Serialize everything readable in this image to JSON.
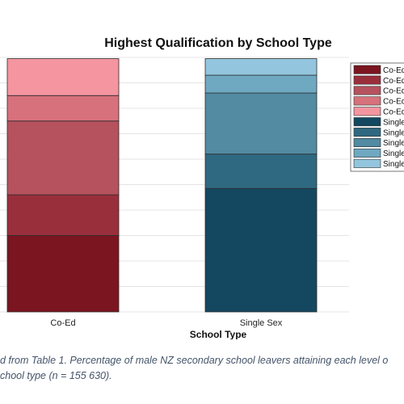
{
  "chart_data": {
    "type": "bar",
    "stacked": true,
    "title": "Highest Qualification by School Type",
    "xlabel": "School Type",
    "ylabel": "",
    "ylim": [
      0,
      100
    ],
    "grid": true,
    "legend_position": "top-right",
    "categories": [
      "Co-Ed",
      "Single Sex"
    ],
    "bars": [
      {
        "category": "Co-Ed",
        "segments": [
          {
            "value": 30,
            "color": "#7b1520"
          },
          {
            "value": 16,
            "color": "#9a2f3c"
          },
          {
            "value": 29,
            "color": "#b5525d"
          },
          {
            "value": 10,
            "color": "#d7717b"
          },
          {
            "value": 14.5,
            "color": "#f5959f"
          }
        ]
      },
      {
        "category": "Single Sex",
        "segments": [
          {
            "value": 48.5,
            "color": "#144860"
          },
          {
            "value": 13.5,
            "color": "#2f6981"
          },
          {
            "value": 24,
            "color": "#528ba2"
          },
          {
            "value": 7,
            "color": "#6fa8c1"
          },
          {
            "value": 6.5,
            "color": "#93c6de"
          }
        ]
      }
    ],
    "legend": [
      {
        "label": "Co-Ed",
        "color": "#7b1520"
      },
      {
        "label": "Co-Ed",
        "color": "#9a2f3c"
      },
      {
        "label": "Co-Ed",
        "color": "#b5525d"
      },
      {
        "label": "Co-Ed",
        "color": "#d7717b"
      },
      {
        "label": "Co-Ed",
        "color": "#f5959f"
      },
      {
        "label": "Single-",
        "color": "#144860"
      },
      {
        "label": "Single-",
        "color": "#2f6981"
      },
      {
        "label": "Single-",
        "color": "#528ba2"
      },
      {
        "label": "Single-",
        "color": "#6fa8c1"
      },
      {
        "label": "Single-",
        "color": "#93c6de"
      }
    ]
  },
  "caption": {
    "line1": "d from Table 1. Percentage of male NZ secondary school leavers attaining each level o",
    "line2": "chool type (n = 155 630)."
  }
}
